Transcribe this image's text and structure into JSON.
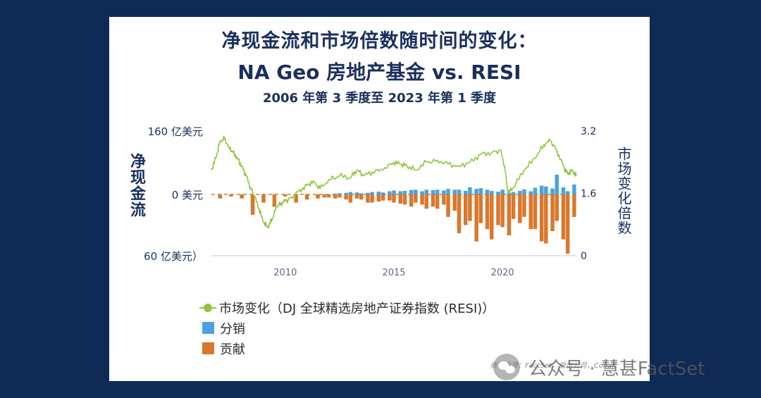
{
  "header": {
    "title_line1": "净现金流和市场倍数随时间的变化：",
    "title_line2": "NA Geo 房地产基金 vs. RESI",
    "subtitle": "2006 年第 3 季度至 2023 年第 1 季度"
  },
  "source_note": "资料来源：FactSet，伯尔公司，Cobalt",
  "watermark": {
    "icon": "wechat-icon",
    "text": "公众号 · 慧甚FactSet"
  },
  "chart_data": {
    "type": "bar",
    "ylabel_left": "净现金流",
    "ylabel_right": "市场变化倍数",
    "left_axis": {
      "ticks": [
        "160 亿美元",
        "0 美元",
        "60 亿美元）"
      ],
      "values": [
        160,
        0,
        -60
      ],
      "ylim": [
        -60,
        160
      ]
    },
    "right_axis": {
      "ticks": [
        "3.2",
        "1.6",
        "0"
      ],
      "values": [
        3.2,
        1.6,
        0
      ],
      "ylim": [
        0,
        3.2
      ]
    },
    "x_ticks": [
      "2010",
      "2015",
      "2020"
    ],
    "x_tick_values": [
      2010,
      2015,
      2020
    ],
    "xlim": [
      2006.6,
      2023.4
    ],
    "grid": false,
    "legend_position": "bottom-left",
    "colors": {
      "line": "#8ec63f",
      "distributions": "#4aa3df",
      "contributions": "#d9782d",
      "zero_line": "#d9782d"
    },
    "series": [
      {
        "name": "市场变化（DJ 全球精选房地产证券指数 (RESI)）",
        "kind": "line",
        "axis": "right",
        "x": [
          2006.6,
          2006.8,
          2007.0,
          2007.2,
          2007.4,
          2007.6,
          2007.8,
          2008.0,
          2008.2,
          2008.4,
          2008.6,
          2008.8,
          2009.0,
          2009.2,
          2009.4,
          2009.6,
          2009.8,
          2010.0,
          2010.3,
          2010.6,
          2011.0,
          2011.3,
          2011.6,
          2012.0,
          2012.5,
          2013.0,
          2013.3,
          2013.6,
          2014.0,
          2014.5,
          2015.0,
          2015.3,
          2015.6,
          2016.0,
          2016.5,
          2017.0,
          2017.5,
          2018.0,
          2018.5,
          2019.0,
          2019.5,
          2019.9,
          2020.1,
          2020.25,
          2020.5,
          2021.0,
          2021.5,
          2021.9,
          2022.2,
          2022.5,
          2022.8,
          2023.0,
          2023.2,
          2023.4
        ],
        "y": [
          2.2,
          2.5,
          2.95,
          3.0,
          2.8,
          2.65,
          2.5,
          2.3,
          2.05,
          1.75,
          1.5,
          1.2,
          0.85,
          0.72,
          0.95,
          1.25,
          1.35,
          1.4,
          1.5,
          1.65,
          1.8,
          1.92,
          1.72,
          1.95,
          2.05,
          2.0,
          2.2,
          2.05,
          2.15,
          2.2,
          2.4,
          2.35,
          2.3,
          2.2,
          2.4,
          2.45,
          2.35,
          2.3,
          2.4,
          2.6,
          2.65,
          2.7,
          2.3,
          1.6,
          1.75,
          2.2,
          2.5,
          2.85,
          2.95,
          2.7,
          2.3,
          2.1,
          2.2,
          2.05
        ]
      },
      {
        "name": "分销",
        "kind": "bar",
        "axis": "left",
        "x": [
          2006.6,
          2007.0,
          2007.5,
          2008.0,
          2008.5,
          2009.0,
          2009.5,
          2010.0,
          2010.5,
          2011.0,
          2011.5,
          2011.8,
          2012.0,
          2012.3,
          2012.5,
          2012.8,
          2013.0,
          2013.3,
          2013.5,
          2013.8,
          2014.0,
          2014.3,
          2014.5,
          2014.8,
          2015.0,
          2015.3,
          2015.5,
          2015.8,
          2016.0,
          2016.3,
          2016.5,
          2016.8,
          2017.0,
          2017.3,
          2017.5,
          2017.8,
          2018.0,
          2018.3,
          2018.5,
          2018.8,
          2019.0,
          2019.3,
          2019.5,
          2019.8,
          2020.0,
          2020.3,
          2020.5,
          2020.8,
          2021.0,
          2021.3,
          2021.5,
          2021.8,
          2022.0,
          2022.3,
          2022.5,
          2022.8,
          2023.0,
          2023.3
        ],
        "values": [
          0,
          0,
          0,
          0,
          0,
          0,
          0,
          0,
          0,
          0,
          0,
          0,
          0,
          2,
          3,
          4,
          6,
          5,
          3,
          4,
          6,
          7,
          5,
          8,
          10,
          8,
          9,
          11,
          12,
          8,
          12,
          11,
          12,
          10,
          14,
          12,
          12,
          9,
          18,
          14,
          16,
          12,
          9,
          7,
          12,
          4,
          6,
          9,
          13,
          8,
          17,
          22,
          20,
          15,
          50,
          18,
          8,
          25
        ]
      },
      {
        "name": "贡献",
        "kind": "bar",
        "axis": "left",
        "x": [
          2006.6,
          2007.0,
          2007.5,
          2008.0,
          2008.5,
          2009.0,
          2009.5,
          2010.0,
          2010.5,
          2011.0,
          2011.5,
          2011.8,
          2012.0,
          2012.3,
          2012.5,
          2012.8,
          2013.0,
          2013.3,
          2013.5,
          2013.8,
          2014.0,
          2014.3,
          2014.5,
          2014.8,
          2015.0,
          2015.3,
          2015.5,
          2015.8,
          2016.0,
          2016.3,
          2016.5,
          2016.8,
          2017.0,
          2017.3,
          2017.5,
          2017.8,
          2018.0,
          2018.3,
          2018.5,
          2018.8,
          2019.0,
          2019.3,
          2019.5,
          2019.8,
          2020.0,
          2020.3,
          2020.5,
          2020.8,
          2021.0,
          2021.3,
          2021.5,
          2021.8,
          2022.0,
          2022.3,
          2022.5,
          2022.8,
          2023.0,
          2023.3
        ],
        "values": [
          0,
          -4,
          -2,
          -4,
          -20,
          -8,
          -12,
          -2,
          -8,
          -5,
          -4,
          -3,
          -3,
          -4,
          -3,
          -5,
          -8,
          -4,
          -5,
          -8,
          -8,
          -7,
          -6,
          -6,
          -8,
          -9,
          -10,
          -12,
          -8,
          -10,
          -14,
          -12,
          -14,
          -10,
          -22,
          -16,
          -38,
          -30,
          -26,
          -46,
          -28,
          -34,
          -44,
          -30,
          -32,
          -40,
          -24,
          -28,
          -22,
          -34,
          -34,
          -46,
          -48,
          -36,
          -26,
          -44,
          -58,
          -22
        ]
      }
    ]
  }
}
